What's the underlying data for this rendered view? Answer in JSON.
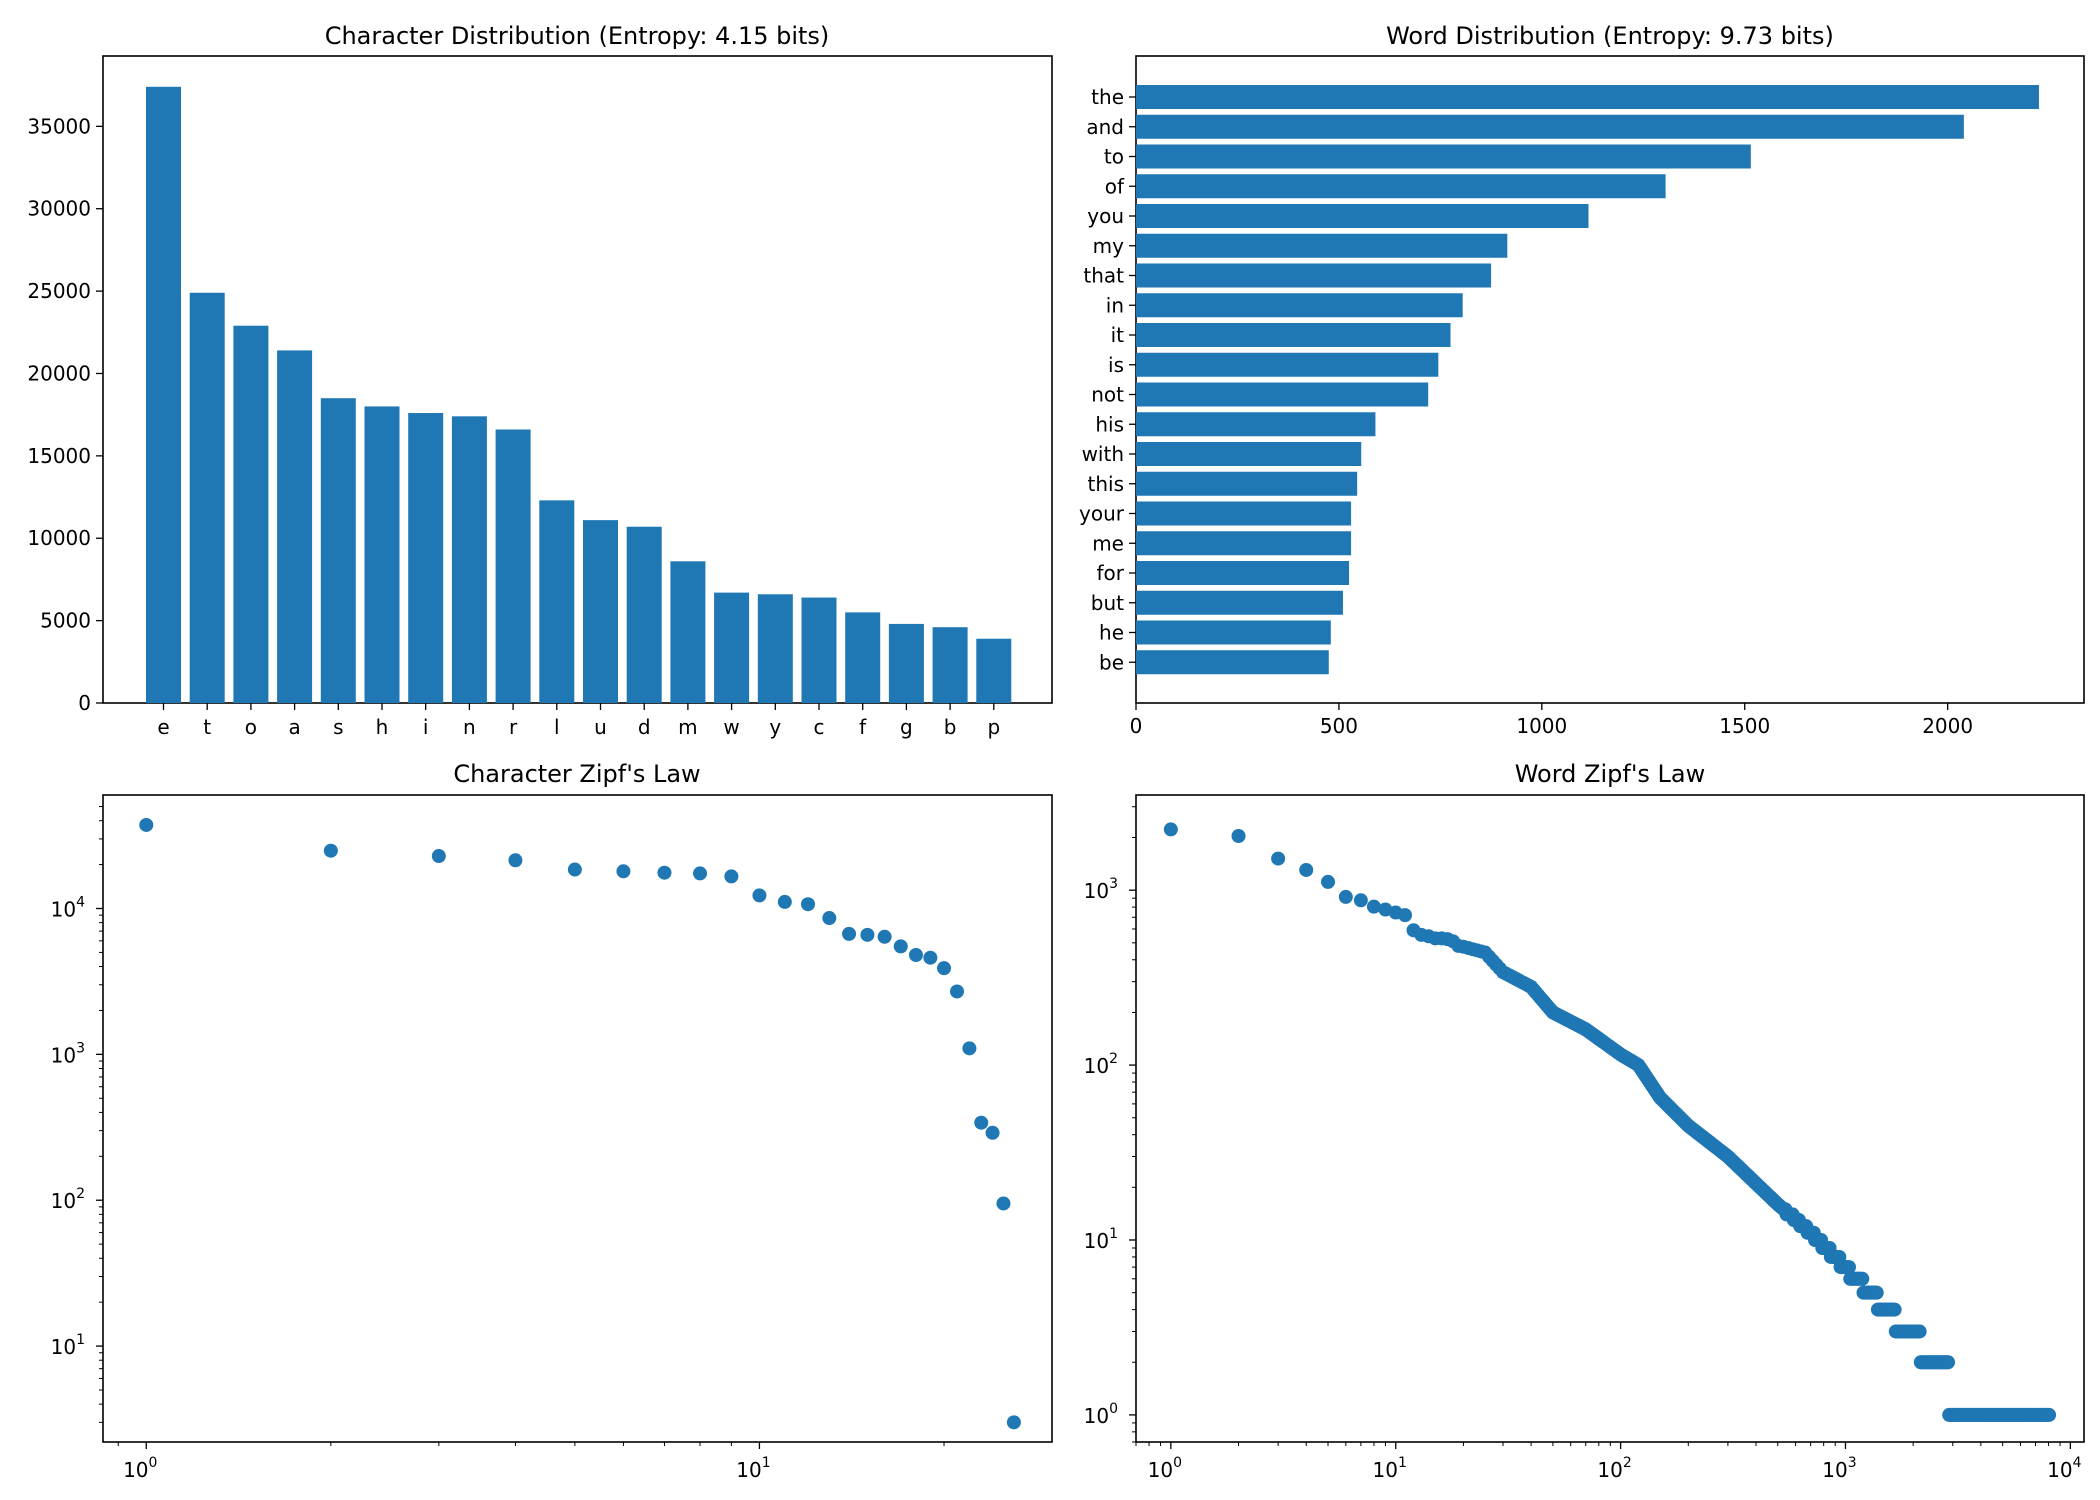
{
  "chart_data": [
    {
      "type": "bar",
      "title": "Character Distribution (Entropy: 4.15 bits)",
      "xlabel": "",
      "ylabel": "",
      "categories": [
        "e",
        "t",
        "o",
        "a",
        "s",
        "h",
        "i",
        "n",
        "r",
        "l",
        "u",
        "d",
        "m",
        "w",
        "y",
        "c",
        "f",
        "g",
        "b",
        "p"
      ],
      "values": [
        37400,
        24900,
        22900,
        21400,
        18500,
        18000,
        17600,
        17400,
        16600,
        12300,
        11100,
        10700,
        8600,
        6700,
        6600,
        6400,
        5500,
        4800,
        4600,
        3900
      ],
      "ylim": [
        0,
        39270
      ],
      "yticks": [
        0,
        5000,
        10000,
        15000,
        20000,
        25000,
        30000,
        35000
      ],
      "grid": false,
      "legend": "none"
    },
    {
      "type": "bar",
      "orientation": "horizontal",
      "title": "Word Distribution (Entropy: 9.73 bits)",
      "xlabel": "",
      "ylabel": "",
      "categories": [
        "the",
        "and",
        "to",
        "of",
        "you",
        "my",
        "that",
        "in",
        "it",
        "is",
        "not",
        "his",
        "with",
        "this",
        "your",
        "me",
        "for",
        "but",
        "he",
        "be"
      ],
      "values": [
        2225,
        2040,
        1515,
        1305,
        1115,
        915,
        875,
        805,
        775,
        745,
        720,
        590,
        555,
        545,
        530,
        530,
        525,
        510,
        480,
        475
      ],
      "xlim": [
        0,
        2336
      ],
      "xticks": [
        0,
        500,
        1000,
        1500,
        2000
      ],
      "grid": false,
      "legend": "none"
    },
    {
      "type": "scatter",
      "title": "Character Zipf's Law",
      "xscale": "log",
      "yscale": "log",
      "xlabel": "",
      "ylabel": "",
      "xlim": [
        0.85,
        30
      ],
      "ylim": [
        2.2,
        60000
      ],
      "xticks": [
        {
          "value": 1,
          "base": "10",
          "exp": "0"
        },
        {
          "value": 10,
          "base": "10",
          "exp": "1"
        }
      ],
      "yticks": [
        {
          "value": 10,
          "base": "10",
          "exp": "1"
        },
        {
          "value": 100,
          "base": "10",
          "exp": "2"
        },
        {
          "value": 1000,
          "base": "10",
          "exp": "3"
        },
        {
          "value": 10000,
          "base": "10",
          "exp": "4"
        }
      ],
      "x": [
        1,
        2,
        3,
        4,
        5,
        6,
        7,
        8,
        9,
        10,
        11,
        12,
        13,
        14,
        15,
        16,
        17,
        18,
        19,
        20,
        21,
        22,
        23,
        24,
        25,
        26
      ],
      "y": [
        37400,
        24900,
        22900,
        21400,
        18500,
        18000,
        17600,
        17400,
        16600,
        12300,
        11100,
        10700,
        8600,
        6700,
        6600,
        6400,
        5500,
        4800,
        4600,
        3900,
        2700,
        1100,
        340,
        290,
        95,
        3
      ],
      "grid": false,
      "legend": "none"
    },
    {
      "type": "scatter",
      "title": "Word Zipf's Law",
      "xscale": "log",
      "yscale": "log",
      "xlabel": "",
      "ylabel": "",
      "xlim": [
        0.7,
        11500
      ],
      "ylim": [
        0.7,
        3500
      ],
      "xticks": [
        {
          "value": 1,
          "base": "10",
          "exp": "0"
        },
        {
          "value": 10,
          "base": "10",
          "exp": "1"
        },
        {
          "value": 100,
          "base": "10",
          "exp": "2"
        },
        {
          "value": 1000,
          "base": "10",
          "exp": "3"
        },
        {
          "value": 10000,
          "base": "10",
          "exp": "4"
        }
      ],
      "yticks": [
        {
          "value": 1,
          "base": "10",
          "exp": "0"
        },
        {
          "value": 10,
          "base": "10",
          "exp": "1"
        },
        {
          "value": 100,
          "base": "10",
          "exp": "2"
        },
        {
          "value": 1000,
          "base": "10",
          "exp": "3"
        }
      ],
      "rank_frequency_anchors": [
        [
          1,
          2225
        ],
        [
          2,
          2040
        ],
        [
          3,
          1515
        ],
        [
          4,
          1305
        ],
        [
          5,
          1115
        ],
        [
          6,
          915
        ],
        [
          7,
          875
        ],
        [
          8,
          805
        ],
        [
          9,
          775
        ],
        [
          10,
          745
        ],
        [
          11,
          720
        ],
        [
          12,
          590
        ],
        [
          13,
          555
        ],
        [
          14,
          545
        ],
        [
          15,
          530
        ],
        [
          16,
          530
        ],
        [
          17,
          525
        ],
        [
          18,
          510
        ],
        [
          19,
          480
        ],
        [
          20,
          475
        ],
        [
          25,
          440
        ],
        [
          30,
          340
        ],
        [
          40,
          280
        ],
        [
          50,
          200
        ],
        [
          70,
          160
        ],
        [
          100,
          115
        ],
        [
          120,
          100
        ],
        [
          150,
          65
        ],
        [
          200,
          45
        ],
        [
          300,
          30
        ],
        [
          500,
          16
        ],
        [
          700,
          11
        ],
        [
          900,
          8
        ],
        [
          1000,
          7
        ],
        [
          1100,
          6
        ],
        [
          1300,
          5
        ],
        [
          1500,
          4
        ],
        [
          1900,
          3
        ],
        [
          2500,
          2
        ],
        [
          3500,
          1
        ],
        [
          8100,
          1
        ]
      ],
      "grid": false,
      "legend": "none"
    }
  ]
}
